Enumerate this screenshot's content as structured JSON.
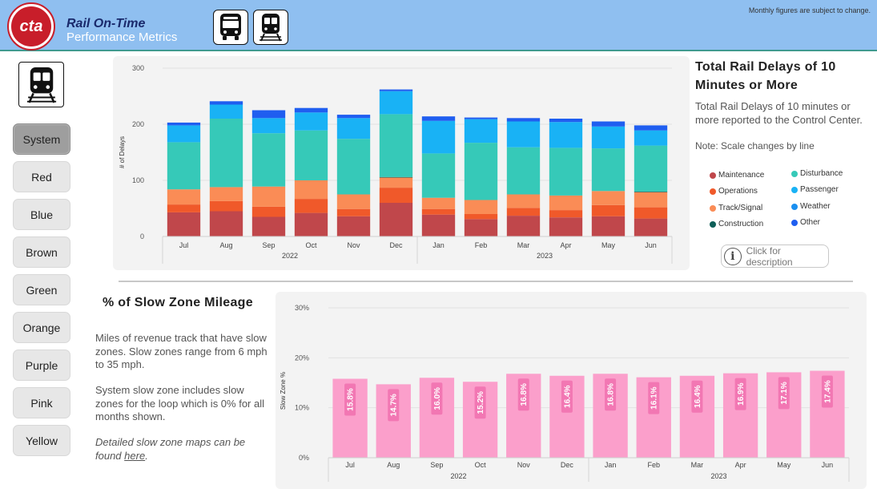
{
  "header": {
    "logo_text": "cta",
    "title_line1": "Rail On-Time",
    "title_line2": "Performance Metrics",
    "notice": "Monthly figures are subject to change."
  },
  "sidebar": {
    "lines": [
      "System",
      "Red",
      "Blue",
      "Brown",
      "Green",
      "Orange",
      "Purple",
      "Pink",
      "Yellow"
    ],
    "active": "System"
  },
  "delays": {
    "title": "Total Rail Delays of 10 Minutes or More",
    "description": "Total Rail Delays of 10 minutes or more reported to the Control Center.",
    "note": "Note: Scale changes by line",
    "legend": [
      {
        "name": "Maintenance",
        "color": "#c0474b"
      },
      {
        "name": "Disturbance",
        "color": "#36c9b8"
      },
      {
        "name": "Operations",
        "color": "#f0592a"
      },
      {
        "name": "Passenger",
        "color": "#19b2f5"
      },
      {
        "name": "Track/Signal",
        "color": "#fa8c56"
      },
      {
        "name": "Weather",
        "color": "#1a8ff0"
      },
      {
        "name": "Construction",
        "color": "#0e5e58"
      },
      {
        "name": "Other",
        "color": "#1f5ef0"
      }
    ],
    "description_button": "Click for description"
  },
  "slow_zone": {
    "title": "% of Slow Zone Mileage",
    "para1": "Miles of revenue track that have slow zones. Slow zones range from 6 mph to 35 mph.",
    "para2": "System slow zone includes slow zones for the loop which is 0% for all months shown.",
    "para3_prefix": "Detailed slow zone maps can be found ",
    "para3_link": "here",
    "para3_suffix": "."
  },
  "chart_data": [
    {
      "type": "bar",
      "stacked": true,
      "title": "Total Rail Delays of 10 Minutes or More",
      "ylabel": "# of Delays",
      "xlabel": "",
      "ylim": [
        0,
        300
      ],
      "yticks": [
        0,
        100,
        200,
        300
      ],
      "categories": [
        "Jul",
        "Aug",
        "Sep",
        "Oct",
        "Nov",
        "Dec",
        "Jan",
        "Feb",
        "Mar",
        "Apr",
        "May",
        "Jun"
      ],
      "year_groups": [
        {
          "label": "2022",
          "start": 0,
          "end": 5
        },
        {
          "label": "2023",
          "start": 6,
          "end": 11
        }
      ],
      "series": [
        {
          "name": "Maintenance",
          "color": "#c0474b",
          "values": [
            43,
            45,
            35,
            42,
            36,
            60,
            39,
            31,
            37,
            34,
            36,
            32
          ]
        },
        {
          "name": "Operations",
          "color": "#f0592a",
          "values": [
            14,
            18,
            18,
            25,
            13,
            27,
            10,
            9,
            14,
            13,
            20,
            20
          ]
        },
        {
          "name": "Track/Signal",
          "color": "#fa8c56",
          "values": [
            27,
            25,
            36,
            33,
            26,
            18,
            20,
            25,
            24,
            26,
            25,
            27
          ]
        },
        {
          "name": "Construction",
          "color": "#0e5e58",
          "values": [
            0,
            0,
            0,
            0,
            0,
            1,
            0,
            0,
            0,
            0,
            0,
            1
          ]
        },
        {
          "name": "Disturbance",
          "color": "#36c9b8",
          "values": [
            84,
            122,
            95,
            89,
            99,
            112,
            79,
            102,
            84,
            85,
            76,
            82
          ]
        },
        {
          "name": "Passenger",
          "color": "#19b2f5",
          "values": [
            30,
            25,
            27,
            32,
            37,
            41,
            58,
            42,
            46,
            46,
            39,
            27
          ]
        },
        {
          "name": "Weather",
          "color": "#1a8ff0",
          "values": [
            0,
            0,
            0,
            0,
            0,
            0,
            0,
            0,
            0,
            0,
            0,
            0
          ]
        },
        {
          "name": "Other",
          "color": "#1f5ef0",
          "values": [
            5,
            6,
            14,
            8,
            6,
            3,
            8,
            3,
            6,
            6,
            9,
            9
          ]
        }
      ]
    },
    {
      "type": "bar",
      "title": "% of Slow Zone Mileage",
      "ylabel": "Slow Zone %",
      "xlabel": "",
      "ylim": [
        0,
        30
      ],
      "yticks": [
        "0%",
        "10%",
        "20%",
        "30%"
      ],
      "categories": [
        "Jul",
        "Aug",
        "Sep",
        "Oct",
        "Nov",
        "Dec",
        "Jan",
        "Feb",
        "Mar",
        "Apr",
        "May",
        "Jun"
      ],
      "year_groups": [
        {
          "label": "2022",
          "start": 0,
          "end": 5
        },
        {
          "label": "2023",
          "start": 6,
          "end": 11
        }
      ],
      "values": [
        15.8,
        14.7,
        16.0,
        15.2,
        16.8,
        16.4,
        16.8,
        16.1,
        16.4,
        16.9,
        17.1,
        17.4
      ],
      "labels": [
        "15.8%",
        "14.7%",
        "16.0%",
        "15.2%",
        "16.8%",
        "16.4%",
        "16.8%",
        "16.1%",
        "16.4%",
        "16.9%",
        "17.1%",
        "17.4%"
      ],
      "color": "#fb9fcb"
    }
  ]
}
